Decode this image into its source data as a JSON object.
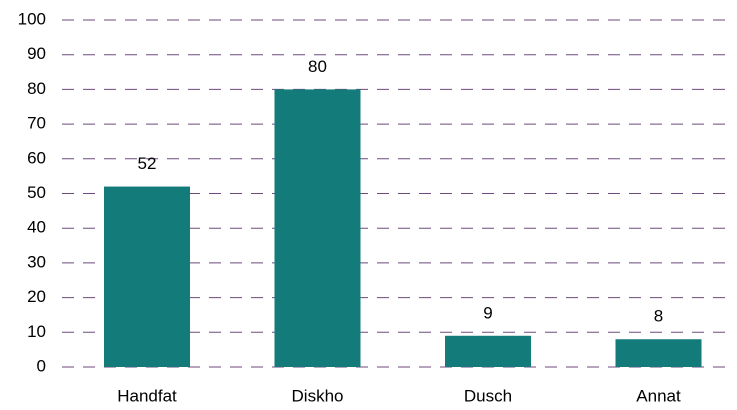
{
  "chart_data": {
    "type": "bar",
    "categories": [
      "Handfat",
      "Diskho",
      "Dusch",
      "Annat"
    ],
    "values": [
      52,
      80,
      9,
      8
    ],
    "color": "#137b7a",
    "ylim": [
      0,
      100
    ],
    "yticks": [
      0,
      10,
      20,
      30,
      40,
      50,
      60,
      70,
      80,
      90,
      100
    ],
    "grid": true
  }
}
